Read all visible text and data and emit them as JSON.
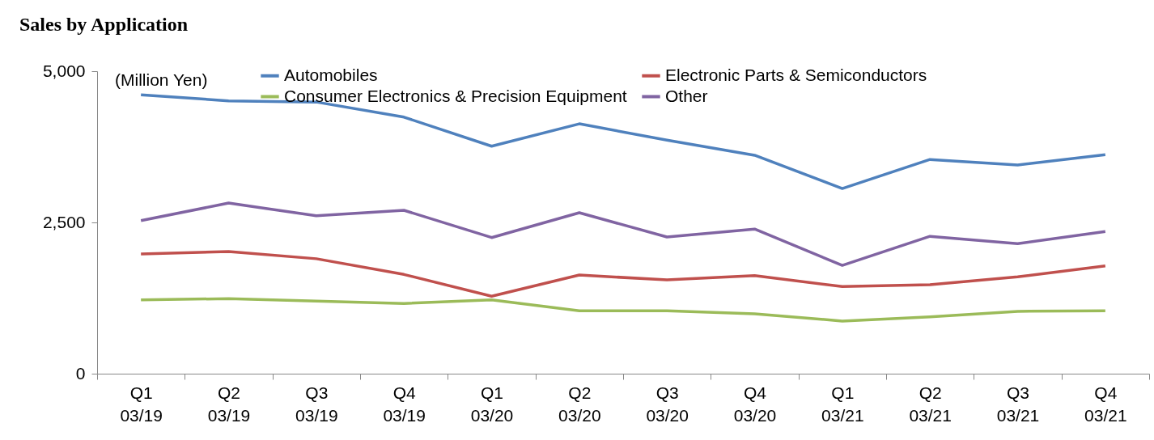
{
  "chart_data": {
    "type": "line",
    "title": "Sales by Application",
    "annotations": [
      "(Million Yen)"
    ],
    "categories": [
      "Q1\n03/19",
      "Q2\n03/19",
      "Q3\n03/19",
      "Q4\n03/19",
      "Q1\n03/20",
      "Q2\n03/20",
      "Q3\n03/20",
      "Q4\n03/20",
      "Q1\n03/21",
      "Q2\n03/21",
      "Q3\n03/21",
      "Q4\n03/21"
    ],
    "series": [
      {
        "name": "Automobiles",
        "color": "#4f81bd",
        "values": [
          4610,
          4510,
          4490,
          4240,
          3760,
          4130,
          3860,
          3610,
          3060,
          3540,
          3450,
          3620
        ]
      },
      {
        "name": "Electronic Parts & Semiconductors",
        "color": "#c0504d",
        "values": [
          1980,
          2020,
          1900,
          1640,
          1280,
          1630,
          1550,
          1620,
          1440,
          1470,
          1600,
          1780
        ]
      },
      {
        "name": "Consumer Electronics & Precision Equipment",
        "color": "#9bbb59",
        "values": [
          1220,
          1240,
          1200,
          1160,
          1220,
          1040,
          1040,
          990,
          870,
          940,
          1030,
          1040
        ]
      },
      {
        "name": "Other",
        "color": "#8064a2",
        "values": [
          2530,
          2820,
          2610,
          2700,
          2250,
          2660,
          2260,
          2390,
          1790,
          2270,
          2150,
          2350
        ]
      }
    ],
    "ylim": [
      0,
      5000
    ],
    "yticks": [
      0,
      {
        "value": 2500,
        "label": "2,500"
      },
      {
        "value": 5000,
        "label": "5,000"
      }
    ],
    "grid": false,
    "legend": "top",
    "marker": "none",
    "line_style": "solid"
  }
}
